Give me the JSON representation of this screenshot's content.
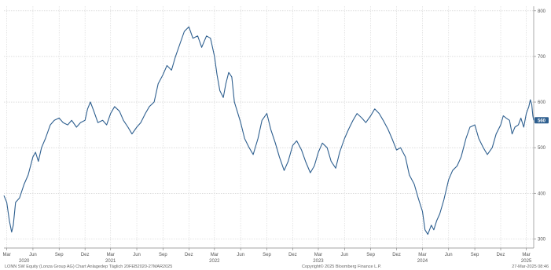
{
  "chart_data": {
    "type": "line",
    "title": "",
    "xlabel": "",
    "ylabel": "",
    "ylim": [
      280,
      810
    ],
    "xlim": [
      "2020-02-20",
      "2025-03-27"
    ],
    "y_ticks": [
      300,
      400,
      500,
      600,
      700,
      800
    ],
    "y_tick_labels": [
      "300",
      "400",
      "500",
      "600",
      "700",
      "800"
    ],
    "grid": true,
    "line_color": "#2e5f8f",
    "last_value": 560,
    "last_value_label": "560",
    "x_ticks": [
      {
        "date": "2020-03-01",
        "label": "Mar"
      },
      {
        "date": "2020-06-01",
        "label": "Jun"
      },
      {
        "date": "2020-09-01",
        "label": "Sep"
      },
      {
        "date": "2020-12-01",
        "label": "Dez"
      },
      {
        "date": "2021-03-01",
        "label": "Mar"
      },
      {
        "date": "2021-06-01",
        "label": "Jun"
      },
      {
        "date": "2021-09-01",
        "label": "Sep"
      },
      {
        "date": "2021-12-01",
        "label": "Dez"
      },
      {
        "date": "2022-03-01",
        "label": "Mar"
      },
      {
        "date": "2022-06-01",
        "label": "Jun"
      },
      {
        "date": "2022-09-01",
        "label": "Sep"
      },
      {
        "date": "2022-12-01",
        "label": "Dez"
      },
      {
        "date": "2023-03-01",
        "label": "Mar"
      },
      {
        "date": "2023-06-01",
        "label": "Jun"
      },
      {
        "date": "2023-09-01",
        "label": "Sep"
      },
      {
        "date": "2023-12-01",
        "label": "Dez"
      },
      {
        "date": "2024-03-01",
        "label": "Mar"
      },
      {
        "date": "2024-06-01",
        "label": "Jun"
      },
      {
        "date": "2024-09-01",
        "label": "Sep"
      },
      {
        "date": "2024-12-01",
        "label": "Dez"
      },
      {
        "date": "2025-03-01",
        "label": "Mar"
      }
    ],
    "year_labels": [
      {
        "date": "2020-05-01",
        "label": "2020"
      },
      {
        "date": "2021-03-01",
        "label": "2021"
      },
      {
        "date": "2022-03-01",
        "label": "2022"
      },
      {
        "date": "2023-03-01",
        "label": "2023"
      },
      {
        "date": "2024-03-01",
        "label": "2024"
      },
      {
        "date": "2025-03-01",
        "label": "2025"
      }
    ],
    "series": [
      {
        "points": [
          [
            "2020-02-20",
            395
          ],
          [
            "2020-03-01",
            380
          ],
          [
            "2020-03-10",
            340
          ],
          [
            "2020-03-18",
            315
          ],
          [
            "2020-03-24",
            330
          ],
          [
            "2020-04-01",
            380
          ],
          [
            "2020-04-15",
            390
          ],
          [
            "2020-05-01",
            420
          ],
          [
            "2020-05-15",
            440
          ],
          [
            "2020-06-01",
            480
          ],
          [
            "2020-06-10",
            490
          ],
          [
            "2020-06-20",
            470
          ],
          [
            "2020-07-01",
            500
          ],
          [
            "2020-07-15",
            520
          ],
          [
            "2020-08-01",
            550
          ],
          [
            "2020-08-15",
            560
          ],
          [
            "2020-09-01",
            565
          ],
          [
            "2020-09-15",
            555
          ],
          [
            "2020-10-01",
            550
          ],
          [
            "2020-10-15",
            560
          ],
          [
            "2020-11-01",
            545
          ],
          [
            "2020-11-15",
            555
          ],
          [
            "2020-12-01",
            560
          ],
          [
            "2020-12-10",
            585
          ],
          [
            "2020-12-20",
            600
          ],
          [
            "2021-01-01",
            580
          ],
          [
            "2021-01-15",
            555
          ],
          [
            "2021-02-01",
            560
          ],
          [
            "2021-02-15",
            550
          ],
          [
            "2021-03-01",
            575
          ],
          [
            "2021-03-15",
            590
          ],
          [
            "2021-04-01",
            580
          ],
          [
            "2021-04-15",
            560
          ],
          [
            "2021-05-01",
            545
          ],
          [
            "2021-05-15",
            530
          ],
          [
            "2021-06-01",
            545
          ],
          [
            "2021-06-15",
            555
          ],
          [
            "2021-07-01",
            575
          ],
          [
            "2021-07-15",
            590
          ],
          [
            "2021-08-01",
            600
          ],
          [
            "2021-08-15",
            640
          ],
          [
            "2021-09-01",
            660
          ],
          [
            "2021-09-15",
            680
          ],
          [
            "2021-10-01",
            670
          ],
          [
            "2021-10-15",
            700
          ],
          [
            "2021-11-01",
            730
          ],
          [
            "2021-11-15",
            755
          ],
          [
            "2021-12-01",
            765
          ],
          [
            "2021-12-15",
            740
          ],
          [
            "2022-01-01",
            745
          ],
          [
            "2022-01-15",
            720
          ],
          [
            "2022-02-01",
            745
          ],
          [
            "2022-02-15",
            740
          ],
          [
            "2022-03-01",
            700
          ],
          [
            "2022-03-10",
            660
          ],
          [
            "2022-03-20",
            625
          ],
          [
            "2022-04-01",
            610
          ],
          [
            "2022-04-10",
            640
          ],
          [
            "2022-04-20",
            665
          ],
          [
            "2022-05-01",
            655
          ],
          [
            "2022-05-10",
            600
          ],
          [
            "2022-05-20",
            580
          ],
          [
            "2022-06-01",
            555
          ],
          [
            "2022-06-15",
            520
          ],
          [
            "2022-07-01",
            500
          ],
          [
            "2022-07-15",
            485
          ],
          [
            "2022-08-01",
            520
          ],
          [
            "2022-08-15",
            560
          ],
          [
            "2022-09-01",
            575
          ],
          [
            "2022-09-15",
            540
          ],
          [
            "2022-10-01",
            510
          ],
          [
            "2022-10-15",
            480
          ],
          [
            "2022-11-01",
            450
          ],
          [
            "2022-11-15",
            470
          ],
          [
            "2022-12-01",
            505
          ],
          [
            "2022-12-15",
            515
          ],
          [
            "2023-01-01",
            495
          ],
          [
            "2023-01-15",
            470
          ],
          [
            "2023-02-01",
            445
          ],
          [
            "2023-02-15",
            460
          ],
          [
            "2023-03-01",
            490
          ],
          [
            "2023-03-15",
            510
          ],
          [
            "2023-04-01",
            500
          ],
          [
            "2023-04-15",
            470
          ],
          [
            "2023-05-01",
            455
          ],
          [
            "2023-05-15",
            490
          ],
          [
            "2023-06-01",
            520
          ],
          [
            "2023-06-15",
            540
          ],
          [
            "2023-07-01",
            560
          ],
          [
            "2023-07-15",
            575
          ],
          [
            "2023-08-01",
            565
          ],
          [
            "2023-08-15",
            555
          ],
          [
            "2023-09-01",
            570
          ],
          [
            "2023-09-15",
            585
          ],
          [
            "2023-10-01",
            575
          ],
          [
            "2023-10-15",
            560
          ],
          [
            "2023-11-01",
            540
          ],
          [
            "2023-11-15",
            520
          ],
          [
            "2023-12-01",
            495
          ],
          [
            "2023-12-15",
            500
          ],
          [
            "2024-01-01",
            480
          ],
          [
            "2024-01-15",
            440
          ],
          [
            "2024-02-01",
            420
          ],
          [
            "2024-02-15",
            390
          ],
          [
            "2024-03-01",
            360
          ],
          [
            "2024-03-10",
            320
          ],
          [
            "2024-03-20",
            310
          ],
          [
            "2024-04-01",
            330
          ],
          [
            "2024-04-10",
            320
          ],
          [
            "2024-04-20",
            340
          ],
          [
            "2024-05-01",
            355
          ],
          [
            "2024-05-15",
            385
          ],
          [
            "2024-06-01",
            430
          ],
          [
            "2024-06-15",
            450
          ],
          [
            "2024-07-01",
            460
          ],
          [
            "2024-07-15",
            480
          ],
          [
            "2024-08-01",
            520
          ],
          [
            "2024-08-15",
            545
          ],
          [
            "2024-09-01",
            550
          ],
          [
            "2024-09-15",
            520
          ],
          [
            "2024-10-01",
            500
          ],
          [
            "2024-10-15",
            485
          ],
          [
            "2024-11-01",
            500
          ],
          [
            "2024-11-15",
            530
          ],
          [
            "2024-12-01",
            550
          ],
          [
            "2024-12-10",
            570
          ],
          [
            "2024-12-20",
            565
          ],
          [
            "2025-01-01",
            560
          ],
          [
            "2025-01-10",
            530
          ],
          [
            "2025-01-20",
            545
          ],
          [
            "2025-02-01",
            550
          ],
          [
            "2025-02-10",
            565
          ],
          [
            "2025-02-20",
            545
          ],
          [
            "2025-03-01",
            575
          ],
          [
            "2025-03-10",
            590
          ],
          [
            "2025-03-15",
            605
          ],
          [
            "2025-03-20",
            595
          ],
          [
            "2025-03-24",
            570
          ],
          [
            "2025-03-27",
            560
          ]
        ]
      }
    ]
  },
  "footer": {
    "left": "LONN SW Equity (Lonza Group AG) Chart Anlagedep  Täglich 20FEB2020-27MAR2025",
    "center": "Copyright© 2025 Bloomberg Finance L.P.",
    "right": "27-Mar-2025 08:46"
  }
}
